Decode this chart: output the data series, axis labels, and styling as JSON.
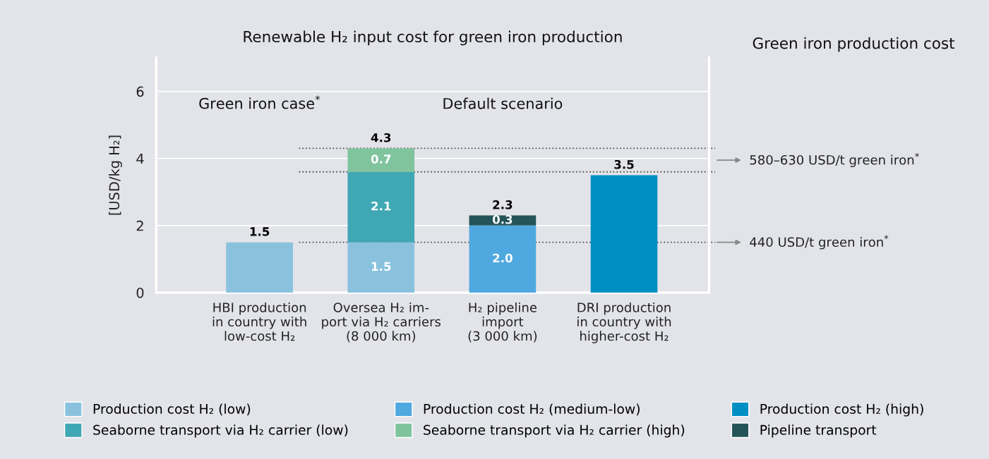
{
  "chart_data": {
    "type": "bar",
    "stacked": true,
    "title": "Renewable H₂ input cost for green iron production",
    "subtitle": "Green iron production cost",
    "ylabel": "[USD/kg H₂]",
    "categories": [
      "HBI production\nin country with\nlow-cost H₂",
      "Oversea H₂ im-\nport via H₂ carriers\n(8 000 km)",
      "H₂ pipeline\nimport\n(3 000 km)",
      "DRI production\nin country with\nhigher-cost H₂"
    ],
    "series": [
      {
        "name": "Production cost H₂ (low)",
        "color": "#8ac2de",
        "values": [
          1.5,
          1.5,
          null,
          null
        ],
        "value_labels": [
          null,
          "1.5",
          null,
          null
        ]
      },
      {
        "name": "Production cost H₂ (medium-low)",
        "color": "#4fa9e0",
        "values": [
          null,
          null,
          2.0,
          null
        ],
        "value_labels": [
          null,
          null,
          "2.0",
          null
        ]
      },
      {
        "name": "Production cost H₂ (high)",
        "color": "#008fc4",
        "values": [
          null,
          null,
          null,
          3.5
        ]
      },
      {
        "name": "Seaborne transport via H₂ carrier (low)",
        "color": "#40a7b4",
        "values": [
          null,
          2.1,
          null,
          null
        ],
        "value_labels": [
          null,
          "2.1",
          null,
          null
        ]
      },
      {
        "name": "Seaborne transport via H₂ carrier (high)",
        "color": "#80c49e",
        "values": [
          null,
          0.7,
          null,
          null
        ],
        "value_labels": [
          null,
          "0.7",
          null,
          null
        ]
      },
      {
        "name": "Pipeline transport",
        "color": "#255458",
        "values": [
          null,
          null,
          0.3,
          null
        ],
        "value_labels": [
          null,
          null,
          "0.3",
          null
        ]
      }
    ],
    "totals": [
      "1.5",
      "4.3",
      "2.3",
      "3.5"
    ],
    "ylim": [
      0,
      7
    ],
    "yticks": [
      0,
      2,
      4,
      6
    ],
    "grid": "y",
    "legend": "bottom",
    "ref_lines": [
      {
        "axis": "y",
        "value": 4.3,
        "line_style": "dotted",
        "color": "#555555"
      },
      {
        "axis": "y",
        "value": 3.6,
        "line_style": "dotted",
        "color": "#555555",
        "label": "580–630 USD/t green iron$^{*}$"
      },
      {
        "axis": "y",
        "value": 1.5,
        "line_style": "dotted",
        "color": "#555555",
        "label": "440 USD/t green iron$^{*}$"
      }
    ],
    "annotations": [
      "Green iron case$^{*}$",
      "Default scenario"
    ]
  }
}
